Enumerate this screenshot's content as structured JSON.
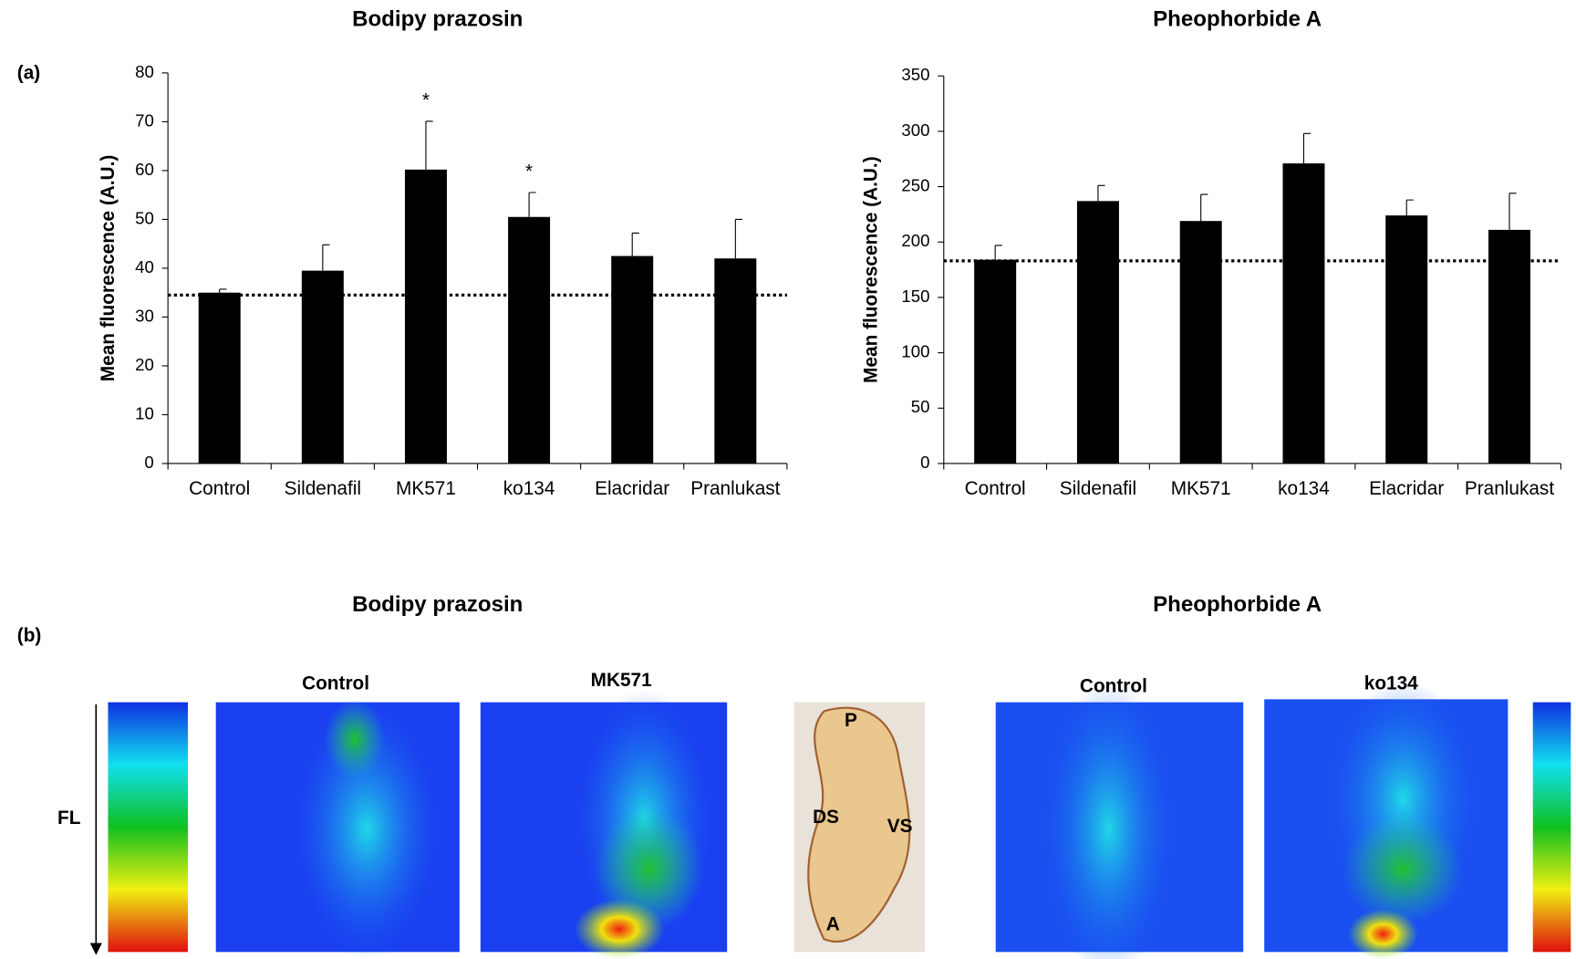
{
  "panel_labels": [
    "(a)",
    "(b)"
  ],
  "chart_data": [
    {
      "type": "bar",
      "title": "Bodipy prazosin",
      "ylabel": "Mean fluorescence (A.U.)",
      "categories": [
        "Control",
        "Sildenafil",
        "MK571",
        "ko134",
        "Elacridar",
        "Pranlukast"
      ],
      "series": [
        {
          "color": "#000000",
          "values": [
            35,
            39.5,
            60.2,
            50.5,
            42.5,
            42
          ],
          "errors": [
            0.7,
            5.3,
            9.9,
            5,
            4.7,
            8
          ]
        }
      ],
      "reference_line": 34.5,
      "annotations": [
        {
          "text": "*",
          "x": "MK571"
        },
        {
          "text": "*",
          "x": "ko134"
        }
      ],
      "ylim": [
        0,
        80
      ],
      "yticks": [
        0,
        10,
        20,
        30,
        40,
        50,
        60,
        70,
        80
      ]
    },
    {
      "type": "bar",
      "title": "Pheophorbide A",
      "ylabel": "Mean fluorescence (A.U.)",
      "categories": [
        "Control",
        "Sildenafil",
        "MK571",
        "ko134",
        "Elacridar",
        "Pranlukast"
      ],
      "series": [
        {
          "color": "#000000",
          "values": [
            184,
            237,
            219,
            271,
            224,
            211
          ],
          "errors": [
            13,
            14,
            24,
            27,
            14,
            33
          ]
        }
      ],
      "reference_line": 183,
      "annotations": [],
      "ylim": [
        0,
        350
      ],
      "yticks": [
        0,
        50,
        100,
        150,
        200,
        250,
        300,
        350
      ]
    }
  ],
  "panel_b": {
    "titles": [
      "Bodipy prazosin",
      "Pheophorbide A"
    ],
    "colorbar_label": "FL",
    "image_labels": [
      "Control",
      "MK571",
      "Control",
      "ko134"
    ],
    "anatomy_labels": [
      "P",
      "DS",
      "VS",
      "A"
    ]
  }
}
